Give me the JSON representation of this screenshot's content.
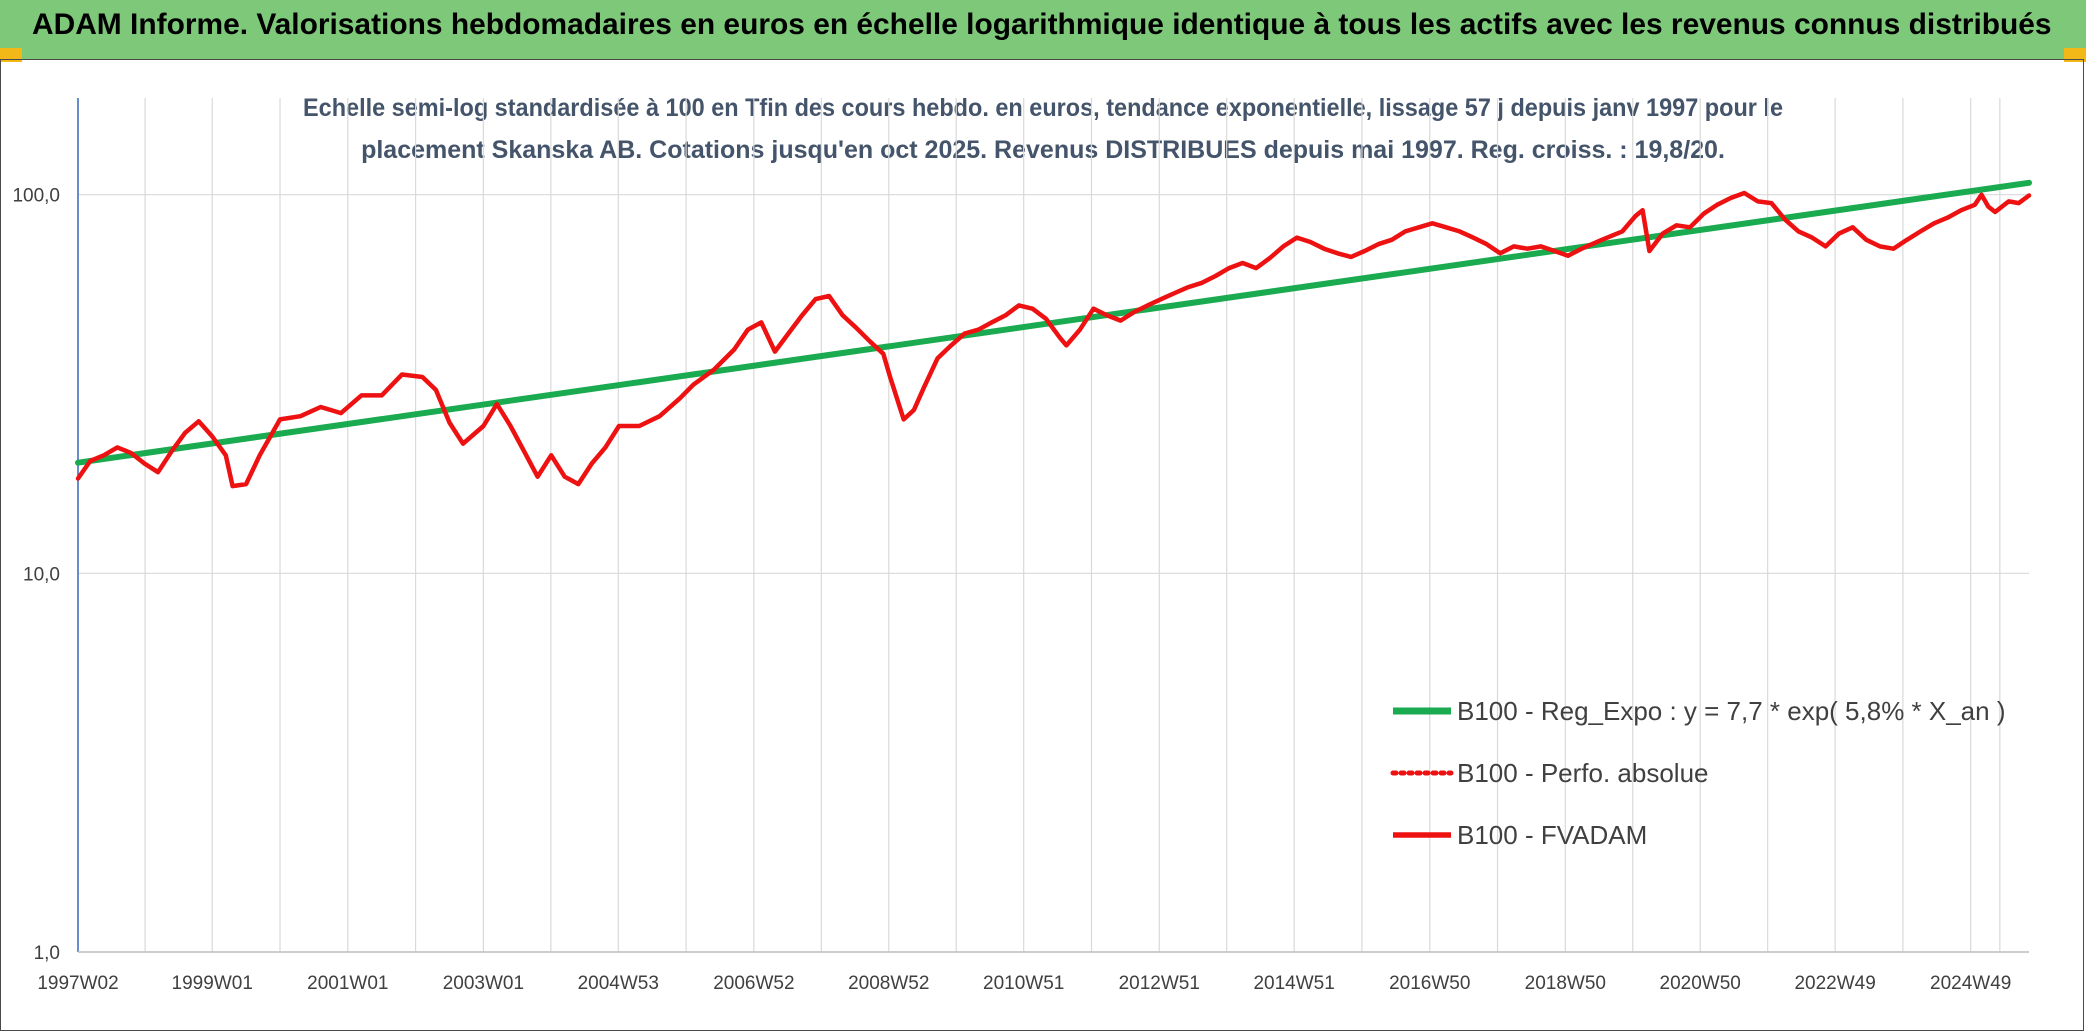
{
  "header": {
    "title": "ADAM Informe. Valorisations hebdomadaires en euros en échelle logarithmique identique à tous les actifs avec les revenus connus distribués"
  },
  "colors": {
    "header_bg": "#7ec87a",
    "corner_accent": "#f2b817",
    "trend": "#1aaa50",
    "fvadam": "#ee1111",
    "perfo": "#ee1111",
    "grid": "#d9d9d9",
    "subtitle": "#44546a"
  },
  "chart_data": {
    "type": "line",
    "subtitle_lines": [
      "Echelle semi-log standardisée à 100 en Tfin des cours hebdo. en euros, tendance exponentielle, lissage 57 j depuis janv 1997 pour le",
      "placement Skanska AB. Cotations jusqu'en oct 2025. Revenus DISTRIBUES depuis mai 1997. Reg. croiss. : 19,8/20."
    ],
    "y_scale": "log",
    "ylim": [
      1,
      180
    ],
    "y_ticks": [
      {
        "value": 1,
        "label": "1,0"
      },
      {
        "value": 10,
        "label": "10,0"
      },
      {
        "value": 100,
        "label": "100,0"
      }
    ],
    "x_range": [
      1997.02,
      2025.8
    ],
    "x_ticks": [
      {
        "x": 1997.02,
        "label": "1997W02"
      },
      {
        "x": 1999.0,
        "label": "1999W01"
      },
      {
        "x": 2001.0,
        "label": "2001W01"
      },
      {
        "x": 2003.0,
        "label": "2003W01"
      },
      {
        "x": 2004.99,
        "label": "2004W53"
      },
      {
        "x": 2006.99,
        "label": "2006W52"
      },
      {
        "x": 2008.98,
        "label": "2008W52"
      },
      {
        "x": 2010.97,
        "label": "2010W51"
      },
      {
        "x": 2012.97,
        "label": "2012W51"
      },
      {
        "x": 2014.96,
        "label": "2014W51"
      },
      {
        "x": 2016.96,
        "label": "2016W50"
      },
      {
        "x": 2018.96,
        "label": "2018W50"
      },
      {
        "x": 2020.95,
        "label": "2020W50"
      },
      {
        "x": 2022.94,
        "label": "2022W49"
      },
      {
        "x": 2024.94,
        "label": "2024W49"
      }
    ],
    "legend_position": "bottom-right",
    "series": [
      {
        "name": "B100 - Reg_Expo : y = 7,7 * exp( 5,8% *  X_an )",
        "style": "solid-thick",
        "points": [
          [
            1997.02,
            19.6
          ],
          [
            2025.8,
            107.5
          ]
        ]
      },
      {
        "name": "B100 - Perfo. absolue",
        "style": "dotted",
        "points": []
      },
      {
        "name": "B100 - FVADAM",
        "style": "solid",
        "points": [
          [
            1997.02,
            17.8
          ],
          [
            1997.2,
            19.8
          ],
          [
            1997.4,
            20.5
          ],
          [
            1997.6,
            21.5
          ],
          [
            1997.8,
            20.8
          ],
          [
            1998.0,
            19.5
          ],
          [
            1998.2,
            18.5
          ],
          [
            1998.4,
            21.0
          ],
          [
            1998.6,
            23.5
          ],
          [
            1998.8,
            25.2
          ],
          [
            1999.0,
            23.0
          ],
          [
            1999.2,
            20.5
          ],
          [
            1999.3,
            17.0
          ],
          [
            1999.5,
            17.2
          ],
          [
            1999.7,
            20.5
          ],
          [
            2000.0,
            25.5
          ],
          [
            2000.3,
            26.0
          ],
          [
            2000.6,
            27.5
          ],
          [
            2000.9,
            26.5
          ],
          [
            2001.2,
            29.5
          ],
          [
            2001.5,
            29.5
          ],
          [
            2001.8,
            33.5
          ],
          [
            2002.1,
            33.0
          ],
          [
            2002.3,
            30.5
          ],
          [
            2002.5,
            25.0
          ],
          [
            2002.7,
            22.0
          ],
          [
            2003.0,
            24.5
          ],
          [
            2003.2,
            28.0
          ],
          [
            2003.4,
            24.5
          ],
          [
            2003.6,
            21.0
          ],
          [
            2003.8,
            18.0
          ],
          [
            2004.0,
            20.5
          ],
          [
            2004.2,
            18.0
          ],
          [
            2004.4,
            17.2
          ],
          [
            2004.6,
            19.5
          ],
          [
            2004.8,
            21.5
          ],
          [
            2005.0,
            24.5
          ],
          [
            2005.3,
            24.5
          ],
          [
            2005.6,
            26.0
          ],
          [
            2005.9,
            29.0
          ],
          [
            2006.1,
            31.5
          ],
          [
            2006.4,
            34.5
          ],
          [
            2006.7,
            39.0
          ],
          [
            2006.9,
            44.0
          ],
          [
            2007.1,
            46.0
          ],
          [
            2007.3,
            38.5
          ],
          [
            2007.5,
            43.0
          ],
          [
            2007.7,
            48.0
          ],
          [
            2007.9,
            53.0
          ],
          [
            2008.1,
            54.0
          ],
          [
            2008.3,
            48.0
          ],
          [
            2008.5,
            44.5
          ],
          [
            2008.7,
            41.0
          ],
          [
            2008.9,
            38.0
          ],
          [
            2009.0,
            33.0
          ],
          [
            2009.1,
            29.0
          ],
          [
            2009.2,
            25.5
          ],
          [
            2009.35,
            27.0
          ],
          [
            2009.5,
            31.0
          ],
          [
            2009.7,
            37.0
          ],
          [
            2009.9,
            40.0
          ],
          [
            2010.1,
            43.0
          ],
          [
            2010.3,
            44.0
          ],
          [
            2010.5,
            46.0
          ],
          [
            2010.7,
            48.0
          ],
          [
            2010.9,
            51.0
          ],
          [
            2011.1,
            50.0
          ],
          [
            2011.3,
            47.0
          ],
          [
            2011.5,
            42.0
          ],
          [
            2011.6,
            40.0
          ],
          [
            2011.8,
            44.0
          ],
          [
            2012.0,
            50.0
          ],
          [
            2012.2,
            48.0
          ],
          [
            2012.4,
            46.5
          ],
          [
            2012.6,
            49.0
          ],
          [
            2012.8,
            51.0
          ],
          [
            2013.0,
            53.0
          ],
          [
            2013.2,
            55.0
          ],
          [
            2013.4,
            57.0
          ],
          [
            2013.6,
            58.5
          ],
          [
            2013.8,
            61.0
          ],
          [
            2014.0,
            64.0
          ],
          [
            2014.2,
            66.0
          ],
          [
            2014.4,
            64.0
          ],
          [
            2014.6,
            68.0
          ],
          [
            2014.8,
            73.0
          ],
          [
            2015.0,
            77.0
          ],
          [
            2015.2,
            75.0
          ],
          [
            2015.4,
            72.0
          ],
          [
            2015.6,
            70.0
          ],
          [
            2015.8,
            68.5
          ],
          [
            2016.0,
            71.0
          ],
          [
            2016.2,
            74.0
          ],
          [
            2016.4,
            76.0
          ],
          [
            2016.6,
            80.0
          ],
          [
            2016.8,
            82.0
          ],
          [
            2017.0,
            84.0
          ],
          [
            2017.2,
            82.0
          ],
          [
            2017.4,
            80.0
          ],
          [
            2017.6,
            77.0
          ],
          [
            2017.8,
            74.0
          ],
          [
            2018.0,
            70.0
          ],
          [
            2018.2,
            73.0
          ],
          [
            2018.4,
            72.0
          ],
          [
            2018.6,
            73.0
          ],
          [
            2018.8,
            71.0
          ],
          [
            2019.0,
            69.0
          ],
          [
            2019.2,
            72.0
          ],
          [
            2019.5,
            76.0
          ],
          [
            2019.8,
            80.0
          ],
          [
            2020.0,
            88.0
          ],
          [
            2020.1,
            91.0
          ],
          [
            2020.2,
            71.0
          ],
          [
            2020.4,
            79.0
          ],
          [
            2020.6,
            83.0
          ],
          [
            2020.8,
            82.0
          ],
          [
            2021.0,
            89.0
          ],
          [
            2021.2,
            94.0
          ],
          [
            2021.4,
            98.0
          ],
          [
            2021.6,
            101.0
          ],
          [
            2021.8,
            96.0
          ],
          [
            2022.0,
            95.0
          ],
          [
            2022.2,
            86.0
          ],
          [
            2022.4,
            80.0
          ],
          [
            2022.6,
            77.0
          ],
          [
            2022.8,
            73.0
          ],
          [
            2023.0,
            79.0
          ],
          [
            2023.2,
            82.0
          ],
          [
            2023.4,
            76.0
          ],
          [
            2023.6,
            73.0
          ],
          [
            2023.8,
            72.0
          ],
          [
            2024.0,
            76.0
          ],
          [
            2024.2,
            80.0
          ],
          [
            2024.4,
            84.0
          ],
          [
            2024.6,
            87.0
          ],
          [
            2024.8,
            91.0
          ],
          [
            2025.0,
            94.0
          ],
          [
            2025.1,
            100.0
          ],
          [
            2025.2,
            93.0
          ],
          [
            2025.3,
            90.0
          ],
          [
            2025.5,
            96.0
          ],
          [
            2025.65,
            95.0
          ],
          [
            2025.8,
            99.5
          ]
        ]
      }
    ]
  }
}
